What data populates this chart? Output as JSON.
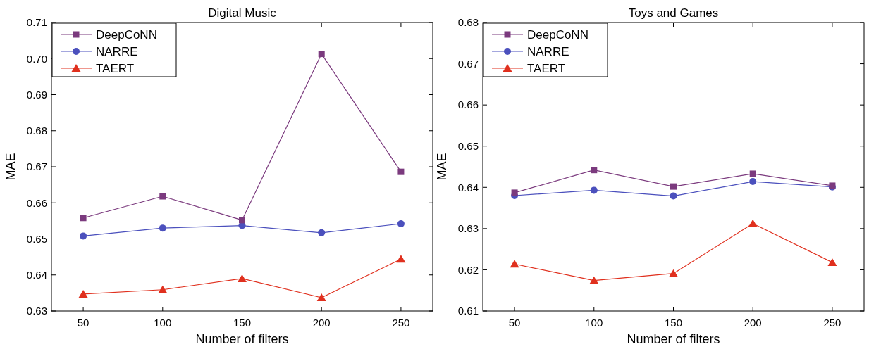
{
  "chart_data": [
    {
      "type": "line",
      "title": "Digital Music",
      "xlabel": "Number of filters",
      "ylabel": "MAE",
      "x": [
        50,
        100,
        150,
        200,
        250
      ],
      "xlim": [
        30,
        270
      ],
      "xticks": [
        50,
        100,
        150,
        200,
        250
      ],
      "ylim": [
        0.63,
        0.71
      ],
      "yticks": [
        0.63,
        0.64,
        0.65,
        0.66,
        0.67,
        0.68,
        0.69,
        {
          "value": 0.7,
          "label": "0.70"
        },
        0.71
      ],
      "legend": "top left",
      "grid": false,
      "line_style": "solid",
      "series": [
        {
          "name": "DeepCoNN",
          "color": "#7b3a7e",
          "marker": "square",
          "values": [
            0.6558,
            0.6618,
            0.6552,
            0.7013,
            0.6686
          ]
        },
        {
          "name": "NARRE",
          "color": "#4b50bd",
          "marker": "circle",
          "values": [
            0.6508,
            0.653,
            0.6537,
            0.6517,
            0.6542
          ]
        },
        {
          "name": "TAERT",
          "color": "#e0301e",
          "marker": "triangle",
          "values": [
            0.6347,
            0.6359,
            0.639,
            0.6337,
            0.6444
          ]
        }
      ]
    },
    {
      "type": "line",
      "title": "Toys and Games",
      "xlabel": "Number of filters",
      "ylabel": "MAE",
      "x": [
        50,
        100,
        150,
        200,
        250
      ],
      "xlim": [
        30,
        270
      ],
      "xticks": [
        50,
        100,
        150,
        200,
        250
      ],
      "ylim": [
        0.61,
        0.68
      ],
      "yticks": [
        0.61,
        0.62,
        0.63,
        0.64,
        0.65,
        0.66,
        0.67,
        0.68
      ],
      "legend": "top left",
      "grid": false,
      "line_style": "solid",
      "series": [
        {
          "name": "DeepCoNN",
          "color": "#7b3a7e",
          "marker": "square",
          "values": [
            0.6387,
            0.6442,
            0.6402,
            0.6433,
            0.6404
          ]
        },
        {
          "name": "NARRE",
          "color": "#4b50bd",
          "marker": "circle",
          "values": [
            0.638,
            0.6393,
            0.6379,
            0.6414,
            0.6401
          ]
        },
        {
          "name": "TAERT",
          "color": "#e0301e",
          "marker": "triangle",
          "values": [
            0.6214,
            0.6174,
            0.6191,
            0.6312,
            0.6218
          ]
        }
      ]
    }
  ]
}
